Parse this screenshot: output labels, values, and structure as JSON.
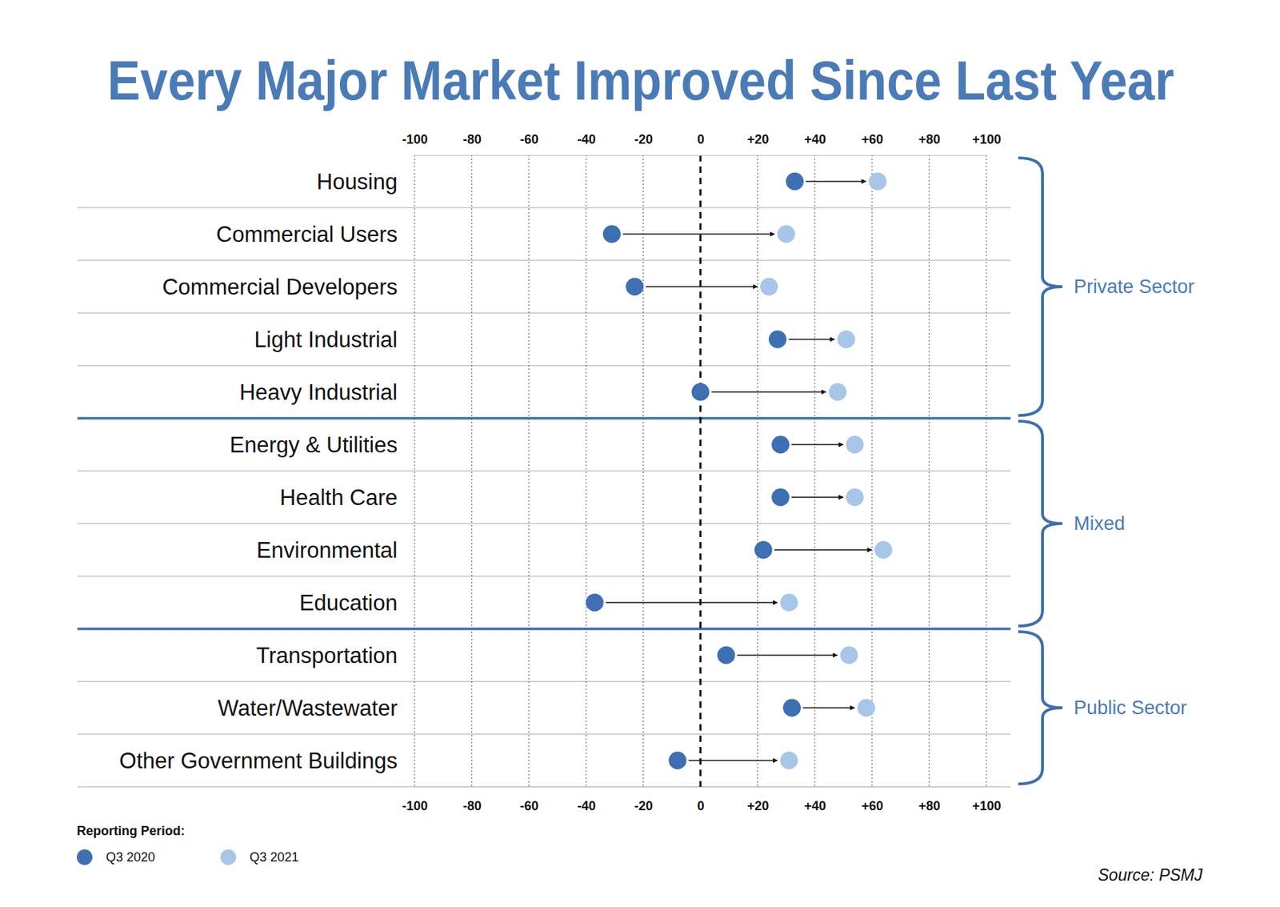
{
  "chart_data": {
    "type": "dumbbell",
    "title": "Every Major Market Improved Since Last Year",
    "categories": [
      "Housing",
      "Commercial Users",
      "Commercial Developers",
      "Light Industrial",
      "Heavy Industrial",
      "Energy & Utilities",
      "Health Care",
      "Environmental",
      "Education",
      "Transportation",
      "Water/Wastewater",
      "Other Government Buildings"
    ],
    "series": [
      {
        "name": "Q3 2020",
        "color": "#3e6fb2",
        "values": [
          33,
          -31,
          -23,
          27,
          0,
          28,
          28,
          22,
          -37,
          9,
          32,
          -8
        ]
      },
      {
        "name": "Q3 2021",
        "color": "#a8c7e8",
        "values": [
          62,
          30,
          24,
          51,
          48,
          54,
          54,
          64,
          31,
          52,
          58,
          31
        ]
      }
    ],
    "groups": [
      {
        "name": "Private Sector",
        "count": 5
      },
      {
        "name": "Mixed",
        "count": 4
      },
      {
        "name": "Public Sector",
        "count": 3
      }
    ],
    "xlim": [
      -100,
      100
    ],
    "xticks": [
      -100,
      -80,
      -60,
      -40,
      -20,
      0,
      {
        "value": 20,
        "label": "+20"
      },
      {
        "value": 40,
        "label": "+40"
      },
      {
        "value": 60,
        "label": "+60"
      },
      {
        "value": 80,
        "label": "+80"
      },
      {
        "value": 100,
        "label": "+100"
      }
    ],
    "grid": true,
    "legend": "lower left",
    "legend_title": "Reporting Period:",
    "source": "Source: PSMJ"
  }
}
